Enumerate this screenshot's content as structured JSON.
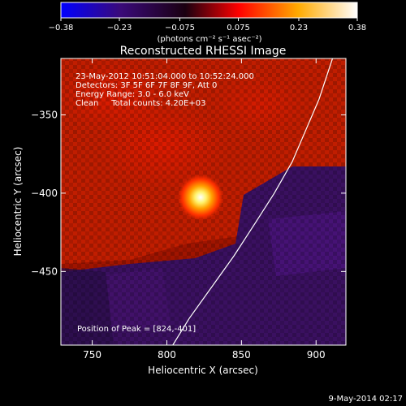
{
  "chart_data": {
    "type": "heatmap",
    "title": "Reconstructed RHESSI Image",
    "xlabel": "Heliocentric X (arcsec)",
    "ylabel": "Heliocentric Y (arcsec)",
    "xlim": [
      729,
      920
    ],
    "ylim": [
      -497,
      -314
    ],
    "x_ticks": [
      750,
      800,
      850,
      900
    ],
    "y_ticks": [
      -350,
      -400,
      -450
    ],
    "colorbar": {
      "range": [
        -0.38,
        0.38
      ],
      "tick_values": [
        -0.38,
        -0.23,
        -0.075,
        0.075,
        0.23,
        0.38
      ],
      "tick_labels": [
        "-0.38",
        "-0.23",
        "-0.075",
        "0.075",
        "0.23",
        "0.38"
      ],
      "unit_label": "(photons cm⁻² s⁻¹ asec⁻²)",
      "colors": [
        "#0000ff",
        "#3a0a7a",
        "#000000",
        "#ff0000",
        "#ffaa00",
        "#ffffff"
      ]
    },
    "annotations": [
      "23-May-2012 10:51:04.000 to 10:52:24.000",
      "Detectors: 3F 5F 6F 7F 8F 9F, Att 0",
      "Energy Range: 3.0 - 6.0 keV",
      "Clean     Total counts: 4.20E+03"
    ],
    "peak_label": "Position of Peak = [824,-401]",
    "peak_position": [
      824,
      -401
    ],
    "limb_curve": [
      [
        804,
        -497
      ],
      [
        815,
        -480
      ],
      [
        830,
        -460
      ],
      [
        845,
        -440
      ],
      [
        860,
        -418
      ],
      [
        872,
        -400
      ],
      [
        884,
        -380
      ],
      [
        893,
        -360
      ],
      [
        902,
        -340
      ],
      [
        911,
        -314
      ]
    ],
    "timestamp": "9-May-2014 02:17"
  }
}
